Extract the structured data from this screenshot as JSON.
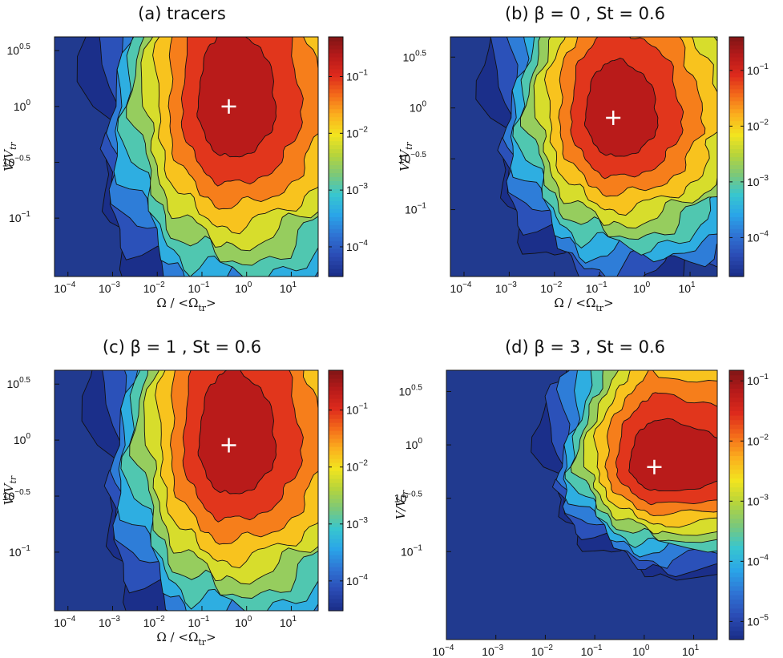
{
  "figure": {
    "background": "#ffffff"
  },
  "colors": {
    "plot_background": "#213a8f",
    "contour_line": "#111111",
    "marker": "#ffffff",
    "colormap": [
      "#1b2f8a",
      "#2b4db6",
      "#2f74d4",
      "#2aa5e8",
      "#38c6cf",
      "#7bc87a",
      "#b6d43c",
      "#f2e41f",
      "#fbb01e",
      "#f46b1a",
      "#dd2a1c",
      "#b51a1a",
      "#7a1515"
    ]
  },
  "marker_symbol": "+",
  "tick_glyph": "10",
  "chart_data": [
    {
      "type": "heatmap",
      "title": "(a) tracers",
      "xlabel": "Ω / <Ω",
      "xlabel_sub": "tr",
      "xlabel_close": ">",
      "ylabel": "V/V",
      "ylabel_sub": "tr",
      "x_scale": "log",
      "y_scale": "log",
      "xlim": [
        5e-05,
        40
      ],
      "ylim": [
        0.03,
        4.2
      ],
      "x_ticks": [
        {
          "v": 0.0001,
          "e": "−4"
        },
        {
          "v": 0.001,
          "e": "−3"
        },
        {
          "v": 0.01,
          "e": "−2"
        },
        {
          "v": 0.1,
          "e": "−1"
        },
        {
          "v": 1,
          "e": "0"
        },
        {
          "v": 10,
          "e": "1"
        }
      ],
      "y_ticks": [
        {
          "v": 3.162,
          "e": "0.5"
        },
        {
          "v": 1,
          "e": "0"
        },
        {
          "v": 0.3162,
          "e": "−0.5"
        },
        {
          "v": 0.1,
          "e": "−1"
        }
      ],
      "colorbar": {
        "scale": "log",
        "range": [
          3e-05,
          0.5
        ],
        "ticks": [
          {
            "v": 0.1,
            "e": "−1"
          },
          {
            "v": 0.01,
            "e": "−2"
          },
          {
            "v": 0.001,
            "e": "−3"
          },
          {
            "v": 0.0001,
            "e": "−4"
          }
        ]
      },
      "peak": {
        "x": 0.4,
        "y": 1.0
      },
      "contour_shape": {
        "min_level": 3e-05,
        "max_level": 0.5,
        "decay_left": 0.95,
        "decay_right": 1.45,
        "decay_up": 1.9,
        "decay_down": 1.25,
        "skew": 0.05
      }
    },
    {
      "type": "heatmap",
      "title": "(b) β = 0 , St = 0.6",
      "xlabel": "Ω / <Ω",
      "xlabel_sub": "tr",
      "xlabel_close": ">",
      "ylabel": "V/V",
      "ylabel_sub": "tr",
      "x_scale": "log",
      "y_scale": "log",
      "xlim": [
        5e-05,
        40
      ],
      "ylim": [
        0.022,
        5.0
      ],
      "x_ticks": [
        {
          "v": 0.0001,
          "e": "−4"
        },
        {
          "v": 0.001,
          "e": "−3"
        },
        {
          "v": 0.01,
          "e": "−2"
        },
        {
          "v": 0.1,
          "e": "−1"
        },
        {
          "v": 1,
          "e": "0"
        },
        {
          "v": 10,
          "e": "1"
        }
      ],
      "y_ticks": [
        {
          "v": 3.162,
          "e": "0.5"
        },
        {
          "v": 1,
          "e": "0"
        },
        {
          "v": 0.3162,
          "e": "−0.5"
        },
        {
          "v": 0.1,
          "e": "−1"
        }
      ],
      "colorbar": {
        "scale": "log",
        "range": [
          2e-05,
          0.4
        ],
        "ticks": [
          {
            "v": 0.1,
            "e": "−1"
          },
          {
            "v": 0.01,
            "e": "−2"
          },
          {
            "v": 0.001,
            "e": "−3"
          },
          {
            "v": 0.0001,
            "e": "−4"
          }
        ]
      },
      "peak": {
        "x": 0.2,
        "y": 0.8
      },
      "contour_shape": {
        "min_level": 2e-05,
        "max_level": 0.4,
        "decay_left": 0.85,
        "decay_right": 1.35,
        "decay_up": 1.55,
        "decay_down": 1.05,
        "skew": 0.1
      }
    },
    {
      "type": "heatmap",
      "title": "(c) β = 1 , St = 0.6",
      "xlabel": "Ω / <Ω",
      "xlabel_sub": "tr",
      "xlabel_close": ">",
      "ylabel": "V/V",
      "ylabel_sub": "tr",
      "x_scale": "log",
      "y_scale": "log",
      "xlim": [
        5e-05,
        40
      ],
      "ylim": [
        0.03,
        4.2
      ],
      "x_ticks": [
        {
          "v": 0.0001,
          "e": "−4"
        },
        {
          "v": 0.001,
          "e": "−3"
        },
        {
          "v": 0.01,
          "e": "−2"
        },
        {
          "v": 0.1,
          "e": "−1"
        },
        {
          "v": 1,
          "e": "0"
        },
        {
          "v": 10,
          "e": "1"
        }
      ],
      "y_ticks": [
        {
          "v": 3.162,
          "e": "0.5"
        },
        {
          "v": 1,
          "e": "0"
        },
        {
          "v": 0.3162,
          "e": "−0.5"
        },
        {
          "v": 0.1,
          "e": "−1"
        }
      ],
      "colorbar": {
        "scale": "log",
        "range": [
          3e-05,
          0.5
        ],
        "ticks": [
          {
            "v": 0.1,
            "e": "−1"
          },
          {
            "v": 0.01,
            "e": "−2"
          },
          {
            "v": 0.001,
            "e": "−3"
          },
          {
            "v": 0.0001,
            "e": "−4"
          }
        ]
      },
      "peak": {
        "x": 0.4,
        "y": 0.9
      },
      "contour_shape": {
        "min_level": 3e-05,
        "max_level": 0.5,
        "decay_left": 0.92,
        "decay_right": 1.45,
        "decay_up": 1.85,
        "decay_down": 1.2,
        "skew": 0.05
      }
    },
    {
      "type": "heatmap",
      "title": "(d) β = 3 , St = 0.6",
      "xlabel": "Ω / <Ω",
      "xlabel_sub": "tr",
      "xlabel_close": ">",
      "ylabel": "V/V",
      "ylabel_sub": "tr",
      "x_scale": "log",
      "y_scale": "log",
      "xlim": [
        0.0001,
        30
      ],
      "ylim": [
        0.015,
        5.0
      ],
      "x_ticks": [
        {
          "v": 0.0001,
          "e": "−4"
        },
        {
          "v": 0.001,
          "e": "−3"
        },
        {
          "v": 0.01,
          "e": "−2"
        },
        {
          "v": 0.1,
          "e": "−1"
        },
        {
          "v": 1,
          "e": "0"
        },
        {
          "v": 10,
          "e": "1"
        }
      ],
      "y_ticks": [
        {
          "v": 3.162,
          "e": "0.5"
        },
        {
          "v": 1,
          "e": "0"
        },
        {
          "v": 0.3162,
          "e": "−0.5"
        },
        {
          "v": 0.1,
          "e": "−1"
        }
      ],
      "colorbar": {
        "scale": "log",
        "range": [
          5e-06,
          0.15
        ],
        "ticks": [
          {
            "v": 0.1,
            "e": "−1"
          },
          {
            "v": 0.01,
            "e": "−2"
          },
          {
            "v": 0.001,
            "e": "−3"
          },
          {
            "v": 0.0001,
            "e": "−4"
          },
          {
            "v": 1e-05,
            "e": "−5"
          }
        ]
      },
      "peak": {
        "x": 1.6,
        "y": 0.62
      },
      "contour_shape": {
        "min_level": 5e-06,
        "max_level": 0.15,
        "decay_left": 0.7,
        "decay_right": 2.2,
        "decay_up": 1.2,
        "decay_down": 0.62,
        "skew": 0.35
      }
    }
  ]
}
